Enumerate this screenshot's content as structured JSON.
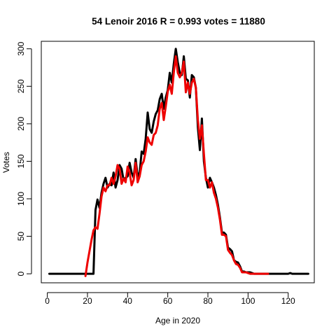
{
  "chart_data": {
    "type": "line",
    "title": "54 Lenoir 2016 R = 0.993 votes = 11880",
    "xlabel": "Age in 2020",
    "ylabel": "Votes",
    "xlim": [
      -3,
      133
    ],
    "ylim": [
      -12,
      310
    ],
    "xticks": [
      "0",
      "20",
      "40",
      "60",
      "80",
      "100",
      "120"
    ],
    "yticks": [
      "0",
      "50",
      "100",
      "150",
      "200",
      "250",
      "300"
    ],
    "grid": false,
    "legend": "none",
    "series": [
      {
        "color": "#000000",
        "x": [
          1,
          2,
          3,
          4,
          5,
          6,
          7,
          8,
          9,
          10,
          11,
          12,
          13,
          14,
          15,
          16,
          17,
          18,
          19,
          20,
          21,
          22,
          23,
          24,
          25,
          26,
          27,
          28,
          29,
          30,
          31,
          32,
          33,
          34,
          35,
          36,
          37,
          38,
          39,
          40,
          41,
          42,
          43,
          44,
          45,
          46,
          47,
          48,
          49,
          50,
          51,
          52,
          53,
          54,
          55,
          56,
          57,
          58,
          59,
          60,
          61,
          62,
          63,
          64,
          65,
          66,
          67,
          68,
          69,
          70,
          71,
          72,
          73,
          74,
          75,
          76,
          77,
          78,
          79,
          80,
          81,
          82,
          83,
          84,
          85,
          86,
          87,
          88,
          89,
          90,
          91,
          92,
          93,
          94,
          95,
          96,
          97,
          98,
          99,
          100,
          101,
          102,
          103,
          104,
          105,
          106,
          107,
          108,
          109,
          110,
          111,
          112,
          113,
          114,
          115,
          116,
          117,
          118,
          119,
          120,
          121,
          122,
          123,
          124,
          125,
          126,
          127,
          128,
          129,
          130
        ],
        "values": [
          0,
          0,
          0,
          0,
          0,
          0,
          0,
          0,
          0,
          0,
          0,
          0,
          0,
          0,
          0,
          0,
          0,
          0,
          0,
          0,
          0,
          0,
          0,
          85,
          99,
          88,
          108,
          120,
          128,
          115,
          120,
          118,
          135,
          115,
          125,
          145,
          140,
          125,
          128,
          130,
          148,
          135,
          128,
          153,
          130,
          135,
          163,
          160,
          180,
          215,
          193,
          188,
          203,
          213,
          218,
          233,
          240,
          220,
          235,
          245,
          268,
          255,
          280,
          300,
          282,
          268,
          265,
          290,
          260,
          258,
          235,
          265,
          262,
          248,
          195,
          165,
          207,
          150,
          128,
          115,
          128,
          122,
          115,
          105,
          92,
          75,
          55,
          55,
          52,
          35,
          33,
          30,
          18,
          16,
          15,
          10,
          3,
          3,
          2,
          2,
          2,
          1,
          0,
          0,
          0,
          0,
          0,
          0,
          0,
          0,
          0,
          0,
          0,
          0,
          0,
          0,
          0,
          0,
          0,
          0,
          1,
          0,
          0,
          0,
          0,
          0,
          0,
          0,
          0,
          0
        ]
      },
      {
        "color": "#ee0000",
        "x": [
          19,
          20,
          21,
          22,
          23,
          24,
          25,
          26,
          27,
          28,
          29,
          30,
          31,
          32,
          33,
          34,
          35,
          36,
          37,
          38,
          39,
          40,
          41,
          42,
          43,
          44,
          45,
          46,
          47,
          48,
          49,
          50,
          51,
          52,
          53,
          54,
          55,
          56,
          57,
          58,
          59,
          60,
          61,
          62,
          63,
          64,
          65,
          66,
          67,
          68,
          69,
          70,
          71,
          72,
          73,
          74,
          75,
          76,
          77,
          78,
          79,
          80,
          81,
          82,
          83,
          84,
          85,
          86,
          87,
          88,
          89,
          90,
          91,
          92,
          93,
          94,
          95,
          96,
          97,
          98,
          99,
          100,
          101,
          102,
          103,
          104,
          105,
          106,
          107,
          108,
          109,
          110
        ],
        "values": [
          -3,
          15,
          30,
          45,
          58,
          62,
          60,
          80,
          103,
          115,
          110,
          118,
          118,
          128,
          120,
          130,
          145,
          140,
          120,
          127,
          122,
          143,
          135,
          118,
          125,
          148,
          122,
          130,
          145,
          150,
          163,
          182,
          175,
          172,
          185,
          188,
          198,
          220,
          228,
          205,
          223,
          243,
          252,
          240,
          268,
          290,
          268,
          262,
          268,
          283,
          242,
          255,
          240,
          255,
          260,
          248,
          205,
          180,
          198,
          160,
          125,
          125,
          115,
          122,
          108,
          100,
          88,
          72,
          52,
          52,
          50,
          32,
          28,
          25,
          18,
          13,
          12,
          8,
          2,
          2,
          2,
          1,
          0,
          0,
          0,
          0,
          0,
          0,
          0,
          0,
          0,
          0
        ]
      }
    ]
  }
}
